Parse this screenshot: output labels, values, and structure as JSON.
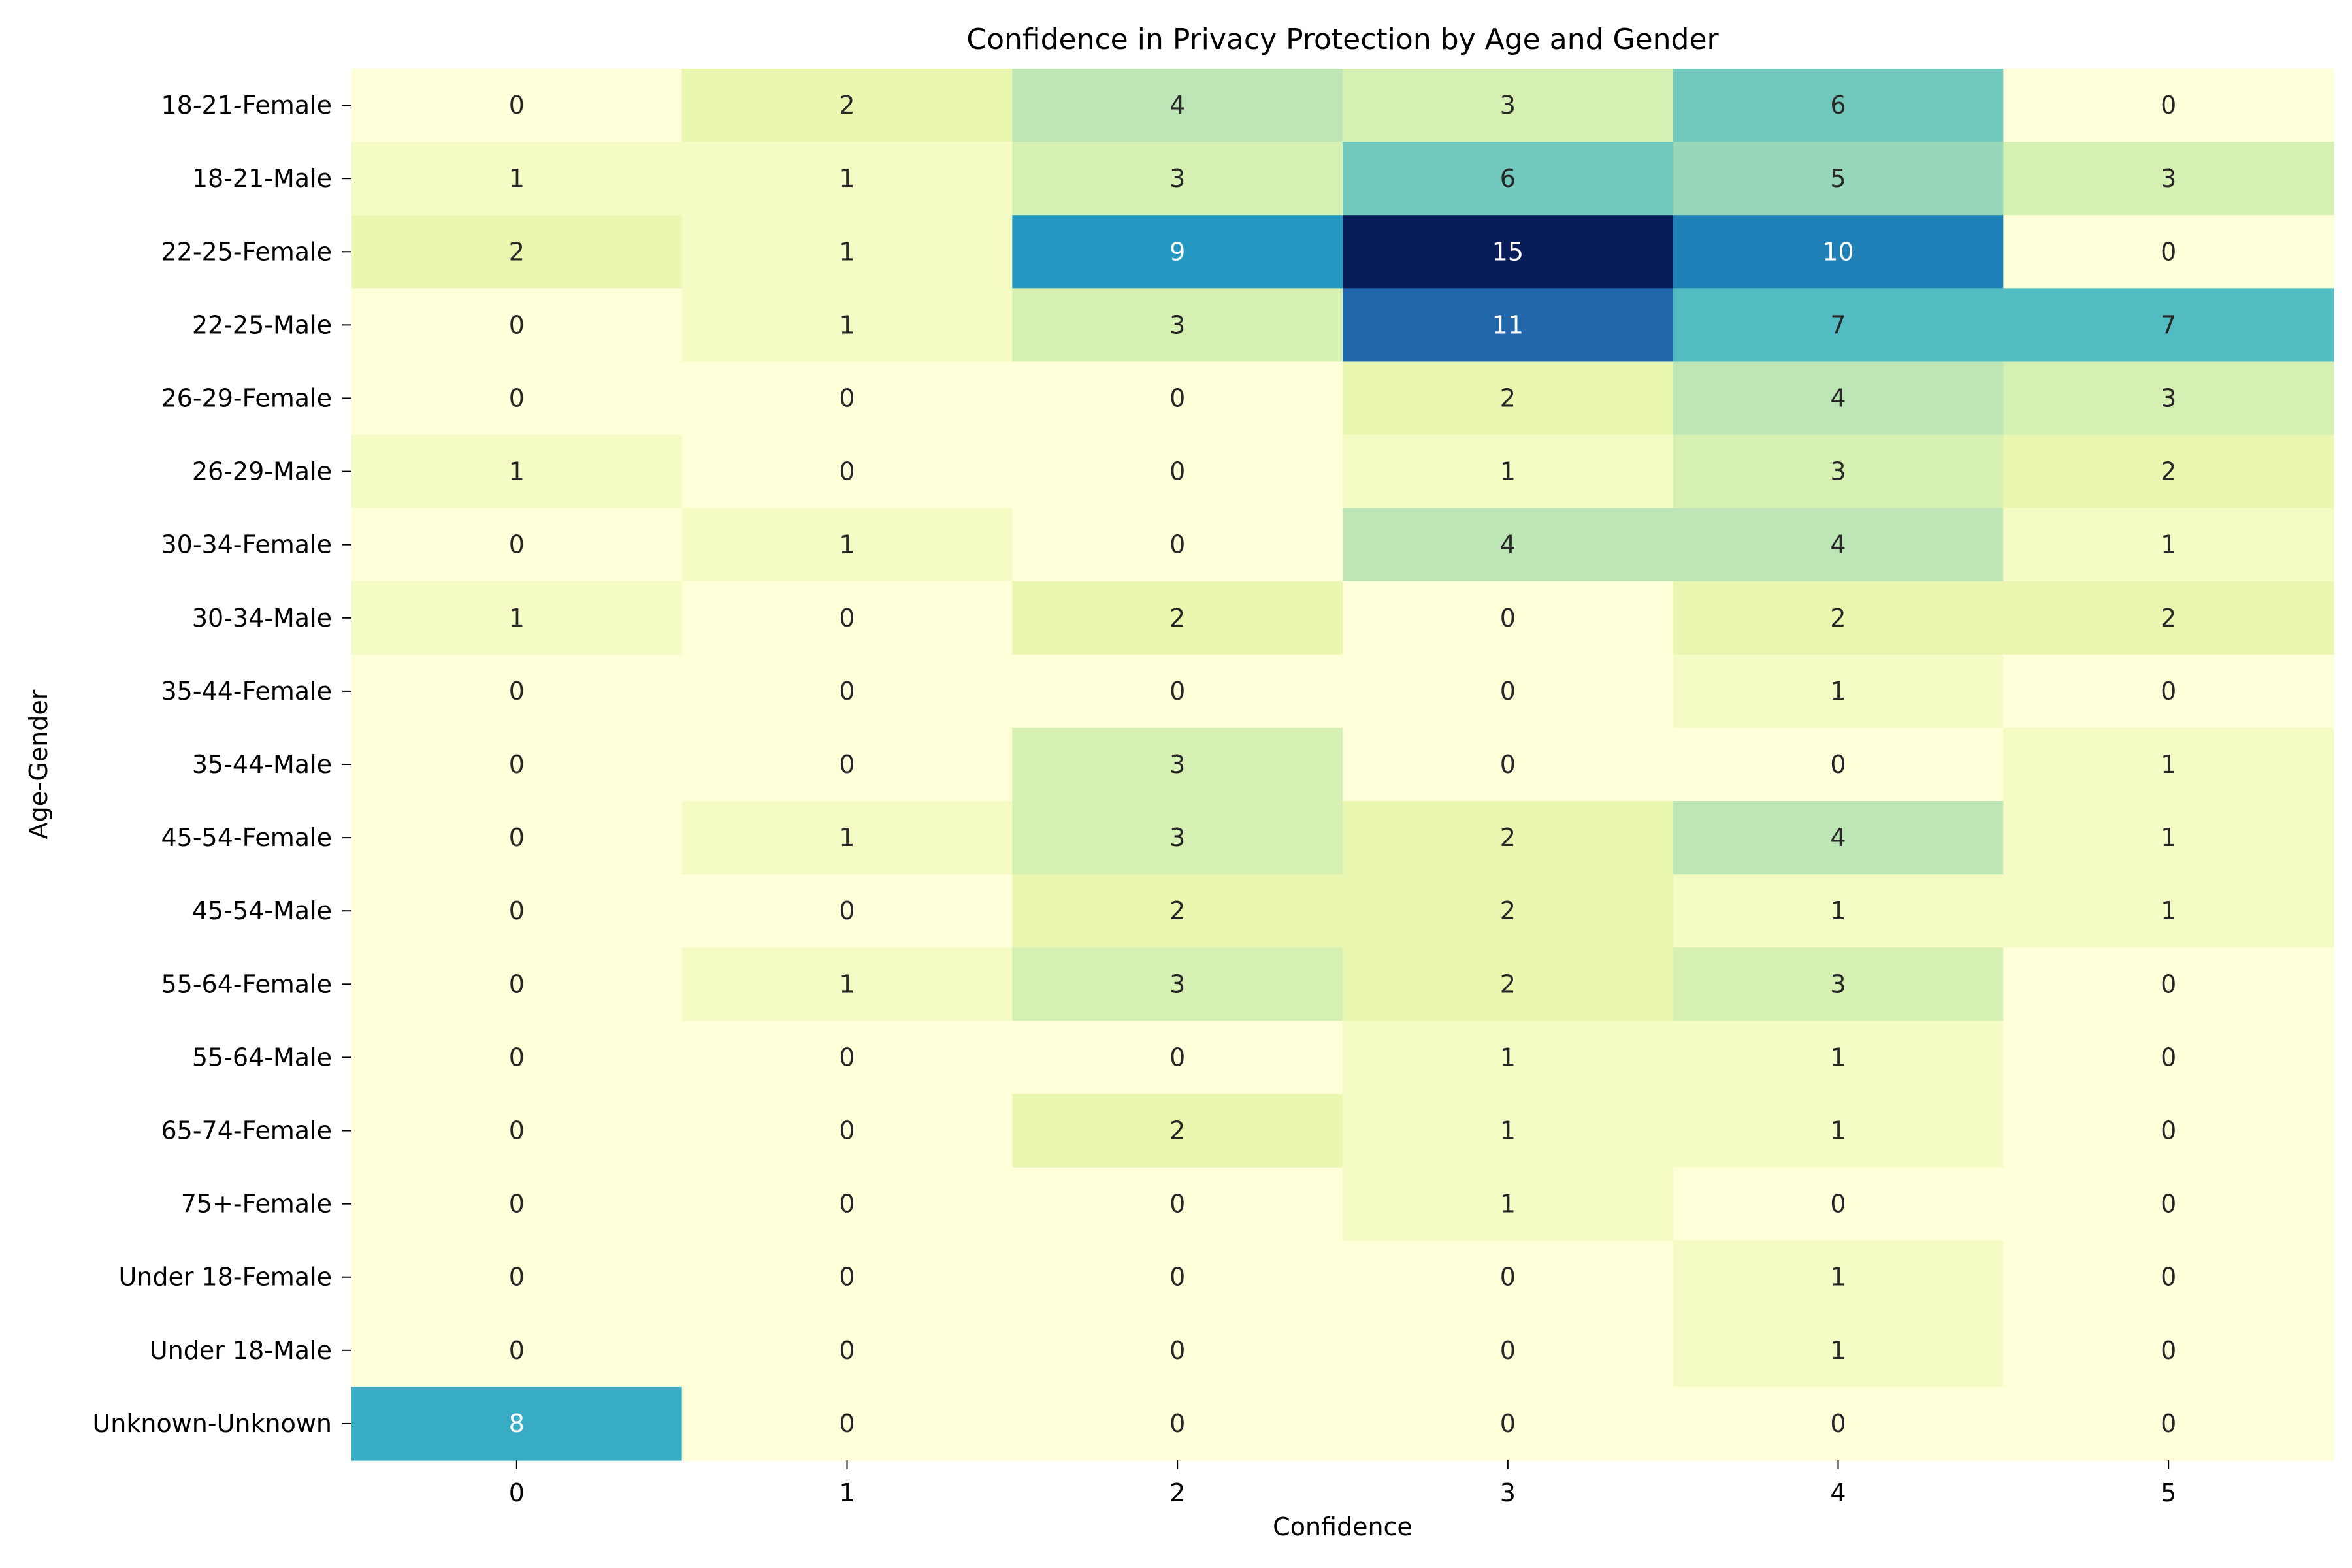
{
  "chart_data": {
    "type": "heatmap",
    "title": "Confidence in Privacy Protection by Age and Gender",
    "xlabel": "Confidence",
    "ylabel": "Age-Gender",
    "x_categories": [
      "0",
      "1",
      "2",
      "3",
      "4",
      "5"
    ],
    "y_categories": [
      "18-21-Female",
      "18-21-Male",
      "22-25-Female",
      "22-25-Male",
      "26-29-Female",
      "26-29-Male",
      "30-34-Female",
      "30-34-Male",
      "35-44-Female",
      "35-44-Male",
      "45-54-Female",
      "45-54-Male",
      "55-64-Female",
      "55-64-Male",
      "65-74-Female",
      "75+-Female",
      "Under 18-Female",
      "Under 18-Male",
      "Unknown-Unknown"
    ],
    "values": [
      [
        0,
        2,
        4,
        3,
        6,
        0
      ],
      [
        1,
        1,
        3,
        6,
        5,
        3
      ],
      [
        2,
        1,
        9,
        15,
        10,
        0
      ],
      [
        0,
        1,
        3,
        11,
        7,
        7
      ],
      [
        0,
        0,
        0,
        2,
        4,
        3
      ],
      [
        1,
        0,
        0,
        1,
        3,
        2
      ],
      [
        0,
        1,
        0,
        4,
        4,
        1
      ],
      [
        1,
        0,
        2,
        0,
        2,
        2
      ],
      [
        0,
        0,
        0,
        0,
        1,
        0
      ],
      [
        0,
        0,
        3,
        0,
        0,
        1
      ],
      [
        0,
        1,
        3,
        2,
        4,
        1
      ],
      [
        0,
        0,
        2,
        2,
        1,
        1
      ],
      [
        0,
        1,
        3,
        2,
        3,
        0
      ],
      [
        0,
        0,
        0,
        1,
        1,
        0
      ],
      [
        0,
        0,
        2,
        1,
        1,
        0
      ],
      [
        0,
        0,
        0,
        1,
        0,
        0
      ],
      [
        0,
        0,
        0,
        0,
        1,
        0
      ],
      [
        0,
        0,
        0,
        0,
        1,
        0
      ],
      [
        8,
        0,
        0,
        0,
        0,
        0
      ]
    ],
    "value_range": [
      0,
      15
    ],
    "colormap": "YlGnBu",
    "colorbar": false,
    "annotations": true,
    "grid": false
  }
}
